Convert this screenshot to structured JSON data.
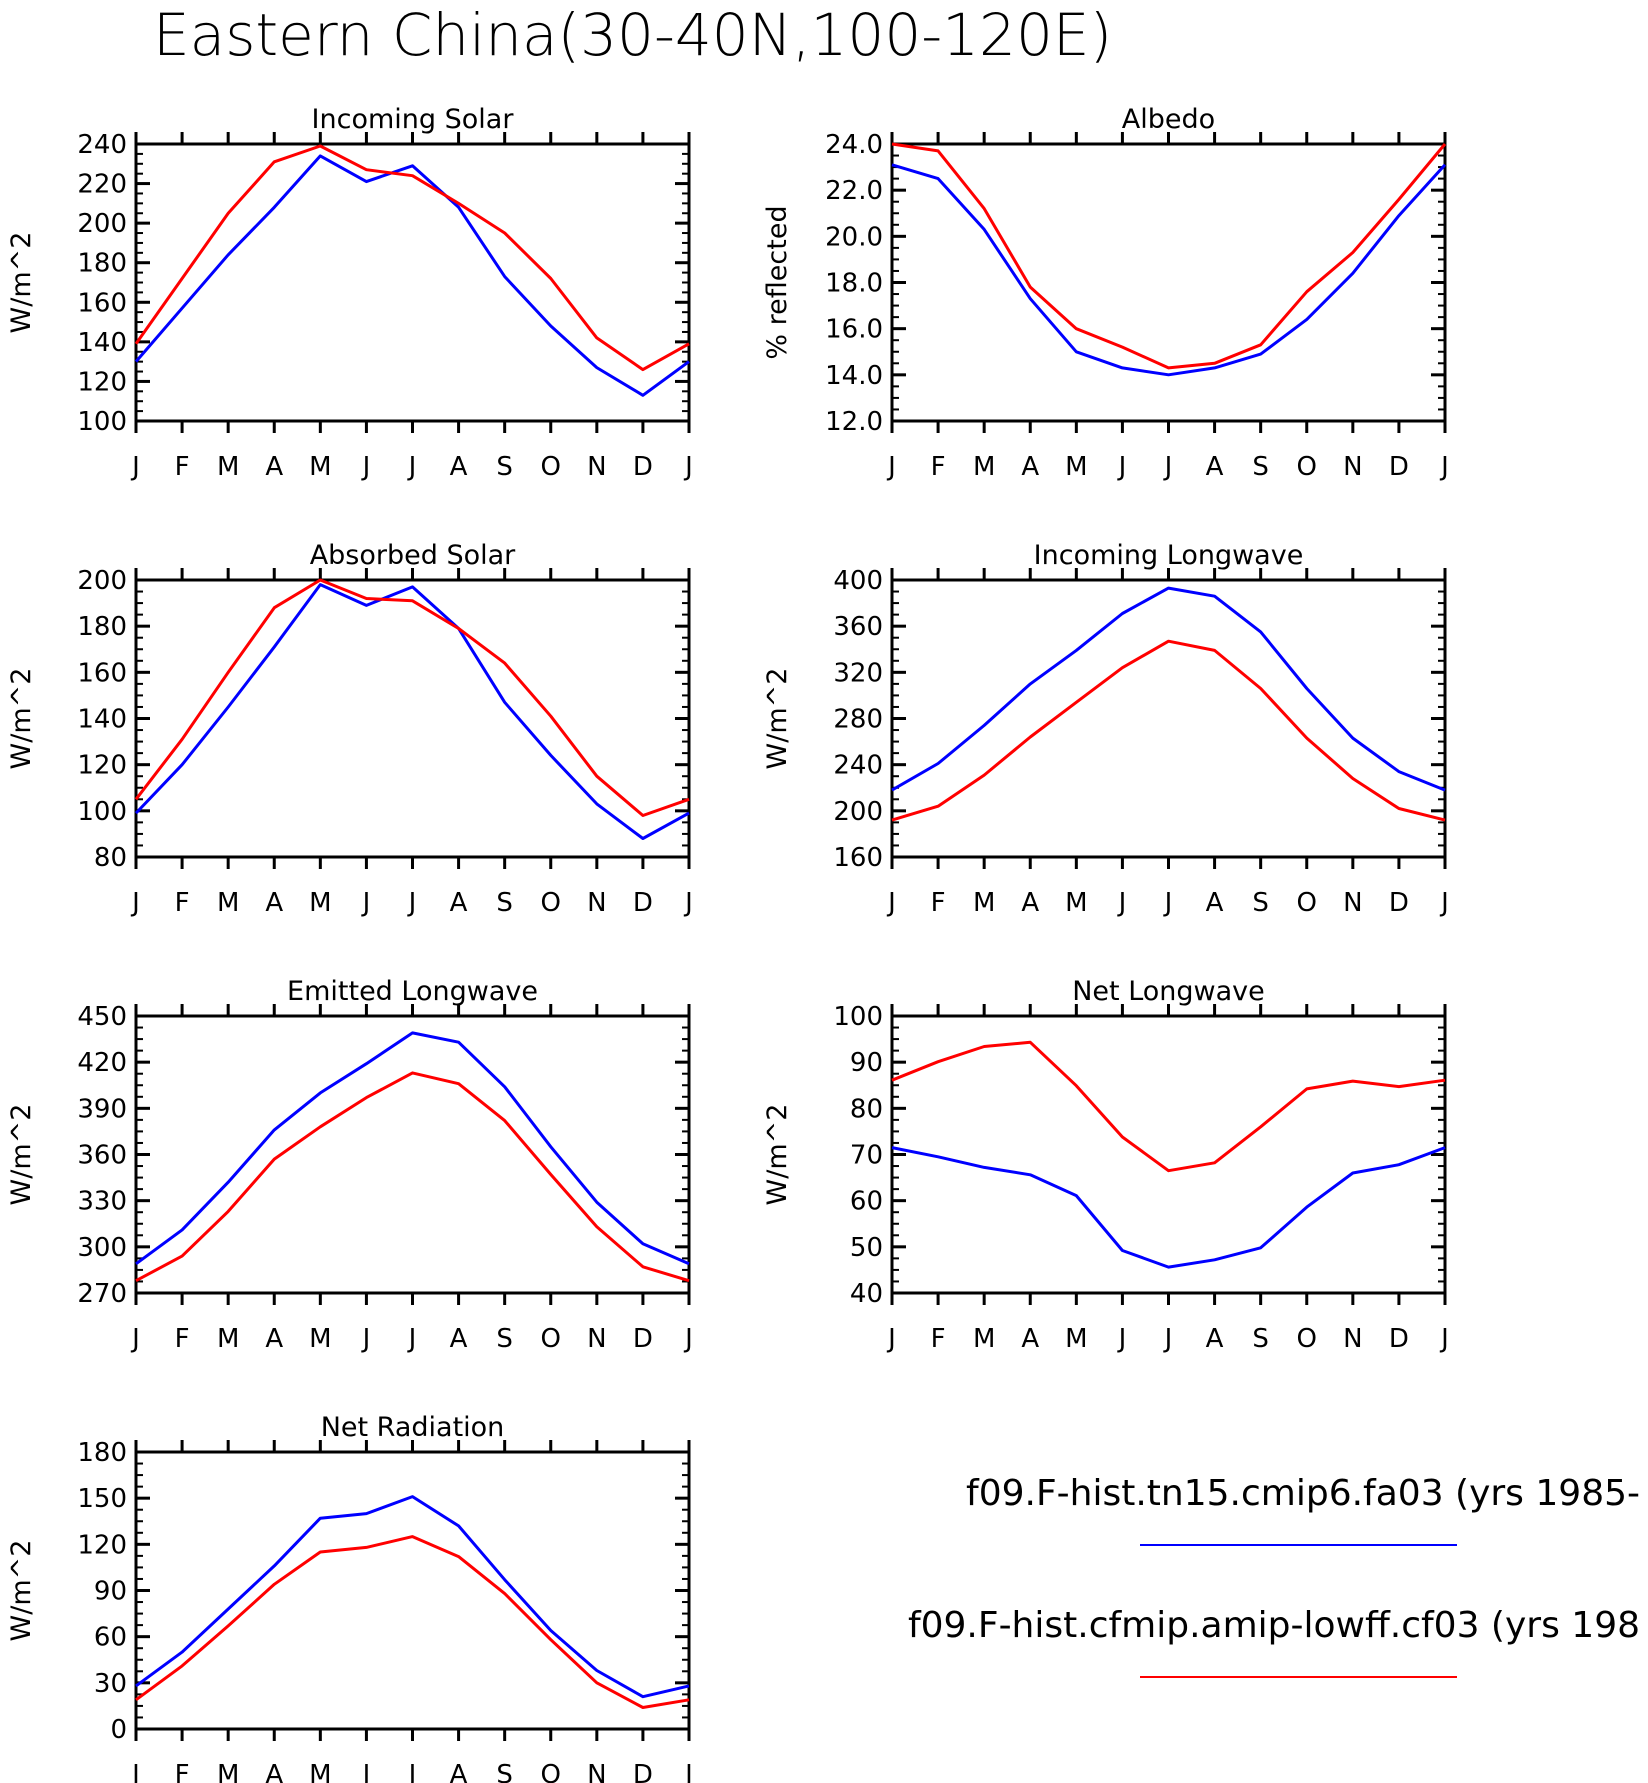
{
  "figure_title": "Eastern China(30-40N,100-120E)",
  "colors": {
    "series_1": "#0000ff",
    "series_2": "#ff0000",
    "axes": "#000000"
  },
  "legend": [
    {
      "label": "f09.F-hist.tn15.cmip6.fa03 (yrs 1985-",
      "color": "#0000ff"
    },
    {
      "label": "f09.F-hist.cfmip.amip-lowff.cf03 (yrs 198",
      "color": "#ff0000"
    }
  ],
  "chart_data": [
    {
      "type": "line",
      "title": "Incoming Solar",
      "ylabel": "W/m^2",
      "categories": [
        "J",
        "F",
        "M",
        "A",
        "M",
        "J",
        "J",
        "A",
        "S",
        "O",
        "N",
        "D",
        "J"
      ],
      "ylim": [
        100,
        240
      ],
      "yticks": [
        "100",
        "120",
        "140",
        "160",
        "180",
        "200",
        "220",
        "240"
      ],
      "series": [
        {
          "color": "#0000ff",
          "values": [
            130,
            157,
            184,
            208,
            234,
            221,
            229,
            208,
            173,
            148,
            127,
            113,
            130
          ]
        },
        {
          "color": "#ff0000",
          "values": [
            139,
            172,
            205,
            231,
            239,
            227,
            224,
            210,
            195,
            172,
            142,
            126,
            139
          ]
        }
      ]
    },
    {
      "type": "line",
      "title": "Albedo",
      "ylabel": "% reflected",
      "categories": [
        "J",
        "F",
        "M",
        "A",
        "M",
        "J",
        "J",
        "A",
        "S",
        "O",
        "N",
        "D",
        "J"
      ],
      "ylim": [
        12,
        24
      ],
      "yticks": [
        "12.0",
        "14.0",
        "16.0",
        "18.0",
        "20.0",
        "22.0",
        "24.0"
      ],
      "series": [
        {
          "color": "#0000ff",
          "values": [
            23.1,
            22.5,
            20.3,
            17.3,
            15.0,
            14.3,
            14.0,
            14.3,
            14.9,
            16.4,
            18.4,
            20.9,
            23.1
          ]
        },
        {
          "color": "#ff0000",
          "values": [
            24.0,
            23.7,
            21.2,
            17.8,
            16.0,
            15.2,
            14.3,
            14.5,
            15.3,
            17.6,
            19.3,
            21.6,
            24.0
          ]
        }
      ]
    },
    {
      "type": "line",
      "title": "Absorbed Solar",
      "ylabel": "W/m^2",
      "categories": [
        "J",
        "F",
        "M",
        "A",
        "M",
        "J",
        "J",
        "A",
        "S",
        "O",
        "N",
        "D",
        "J"
      ],
      "ylim": [
        80,
        200
      ],
      "yticks": [
        "80",
        "100",
        "120",
        "140",
        "160",
        "180",
        "200"
      ],
      "series": [
        {
          "color": "#0000ff",
          "values": [
            99,
            120,
            145,
            171,
            198,
            189,
            197,
            179,
            147,
            124,
            103,
            88,
            99
          ]
        },
        {
          "color": "#ff0000",
          "values": [
            105,
            131,
            160,
            188,
            200,
            192,
            191,
            179,
            164,
            141,
            115,
            98,
            105
          ]
        }
      ]
    },
    {
      "type": "line",
      "title": "Incoming Longwave",
      "ylabel": "W/m^2",
      "categories": [
        "J",
        "F",
        "M",
        "A",
        "M",
        "J",
        "J",
        "A",
        "S",
        "O",
        "N",
        "D",
        "J"
      ],
      "ylim": [
        160,
        400
      ],
      "yticks": [
        "160",
        "200",
        "240",
        "280",
        "320",
        "360",
        "400"
      ],
      "series": [
        {
          "color": "#0000ff",
          "values": [
            218,
            241,
            274,
            310,
            339,
            371,
            393,
            386,
            355,
            306,
            263,
            234,
            218
          ]
        },
        {
          "color": "#ff0000",
          "values": [
            192,
            204,
            231,
            264,
            294,
            324,
            347,
            339,
            306,
            263,
            228,
            202,
            192
          ]
        }
      ]
    },
    {
      "type": "line",
      "title": "Emitted Longwave",
      "ylabel": "W/m^2",
      "categories": [
        "J",
        "F",
        "M",
        "A",
        "M",
        "J",
        "J",
        "A",
        "S",
        "O",
        "N",
        "D",
        "J"
      ],
      "ylim": [
        270,
        450
      ],
      "yticks": [
        "270",
        "300",
        "330",
        "360",
        "390",
        "420",
        "450"
      ],
      "series": [
        {
          "color": "#0000ff",
          "values": [
            289,
            311,
            342,
            376,
            400,
            419,
            439,
            433,
            404,
            365,
            329,
            302,
            289
          ]
        },
        {
          "color": "#ff0000",
          "values": [
            278,
            294,
            323,
            357,
            378,
            397,
            413,
            406,
            382,
            347,
            313,
            287,
            278
          ]
        }
      ]
    },
    {
      "type": "line",
      "title": "Net Longwave",
      "ylabel": "W/m^2",
      "categories": [
        "J",
        "F",
        "M",
        "A",
        "M",
        "J",
        "J",
        "A",
        "S",
        "O",
        "N",
        "D",
        "J"
      ],
      "ylim": [
        40,
        100
      ],
      "yticks": [
        "40",
        "50",
        "60",
        "70",
        "80",
        "90",
        "100"
      ],
      "series": [
        {
          "color": "#0000ff",
          "values": [
            71.5,
            69.5,
            67.2,
            65.6,
            61.1,
            49.2,
            45.6,
            47.2,
            49.8,
            58.6,
            66.0,
            67.8,
            71.5
          ]
        },
        {
          "color": "#ff0000",
          "values": [
            86.1,
            90.1,
            93.4,
            94.3,
            84.9,
            73.8,
            66.5,
            68.2,
            76.0,
            84.2,
            85.9,
            84.7,
            86.1
          ]
        }
      ]
    },
    {
      "type": "line",
      "title": "Net Radiation",
      "ylabel": "W/m^2",
      "categories": [
        "J",
        "F",
        "M",
        "A",
        "M",
        "J",
        "J",
        "A",
        "S",
        "O",
        "N",
        "D",
        "J"
      ],
      "ylim": [
        0,
        180
      ],
      "yticks": [
        "0",
        "30",
        "60",
        "90",
        "120",
        "150",
        "180"
      ],
      "series": [
        {
          "color": "#0000ff",
          "values": [
            28,
            50,
            78,
            106,
            137,
            140,
            151,
            132,
            97,
            64,
            38,
            21,
            28
          ]
        },
        {
          "color": "#ff0000",
          "values": [
            19,
            41,
            67,
            94,
            115,
            118,
            125,
            112,
            88,
            58,
            30,
            14,
            19
          ]
        }
      ]
    }
  ]
}
